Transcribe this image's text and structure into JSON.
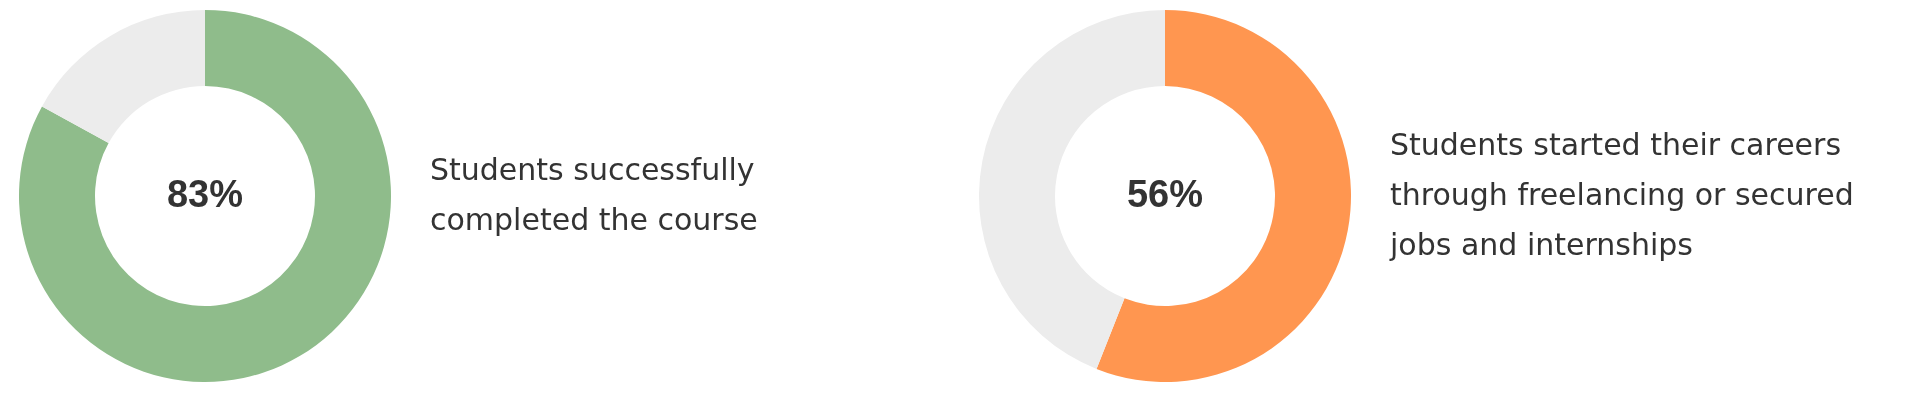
{
  "chart_data": [
    {
      "type": "donut",
      "categories": [
        null,
        null
      ],
      "values": [
        83,
        17
      ],
      "colors": [
        "#8fbc8b",
        "#ececec"
      ],
      "value_labels": [
        "83%",
        null
      ],
      "annotations": [
        "Students successfully completed the course"
      ]
    },
    {
      "type": "donut",
      "categories": [
        null,
        null
      ],
      "values": [
        56,
        44
      ],
      "colors": [
        "#ff9650",
        "#ececec"
      ],
      "value_labels": [
        "56%",
        null
      ],
      "annotations": [
        "Students started their careers through freelancing or secured jobs and internships"
      ]
    }
  ]
}
